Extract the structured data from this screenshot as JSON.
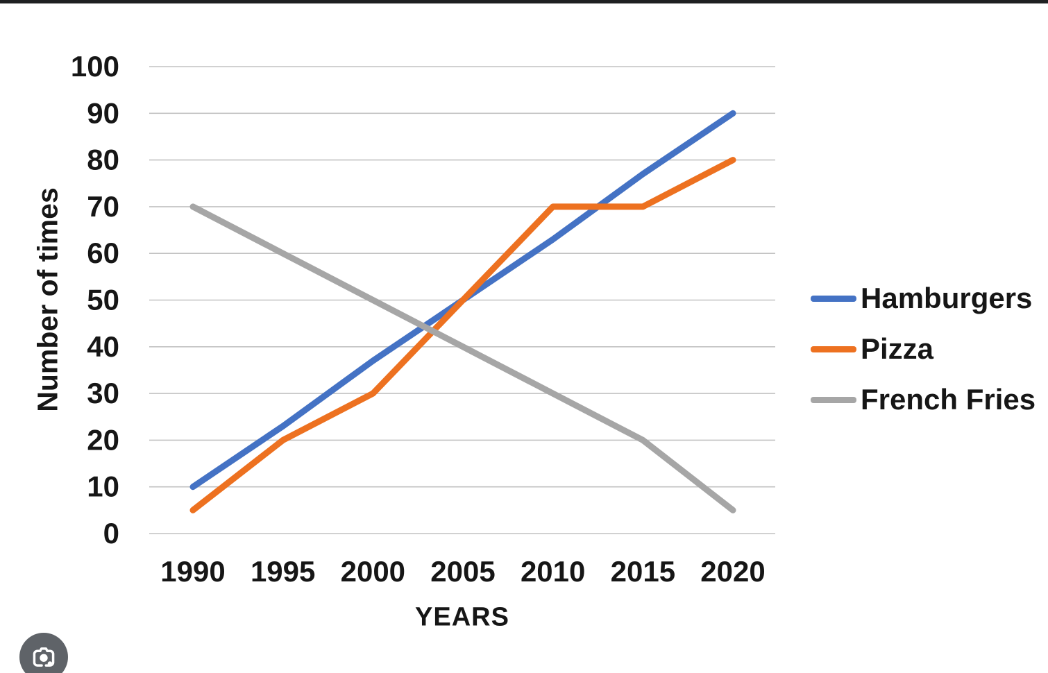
{
  "page": {
    "background": "#ffffff",
    "top_bar_color": "#1f2022"
  },
  "chart_data": {
    "type": "line",
    "title": "",
    "xlabel": "YEARS",
    "ylabel": "Number of times",
    "x": [
      1990,
      1995,
      2000,
      2005,
      2010,
      2015,
      2020
    ],
    "ylim": [
      0,
      100
    ],
    "ytick_step": 10,
    "grid": true,
    "gridline_color": "#c2c2c2",
    "legend_position": "right",
    "series": [
      {
        "name": "Hamburgers",
        "color": "#4472c4",
        "values": [
          10,
          23,
          37,
          50,
          63,
          77,
          90
        ]
      },
      {
        "name": "Pizza",
        "color": "#ed7120",
        "values": [
          5,
          20,
          30,
          50,
          70,
          70,
          80
        ]
      },
      {
        "name": "French Fries",
        "color": "#a6a6a6",
        "values": [
          70,
          60,
          50,
          40,
          30,
          20,
          5
        ]
      }
    ]
  },
  "icons": {
    "camera_button": {
      "semantic": "camera-search-icon",
      "background": "#5f6368",
      "glyph_color": "#ffffff"
    }
  }
}
